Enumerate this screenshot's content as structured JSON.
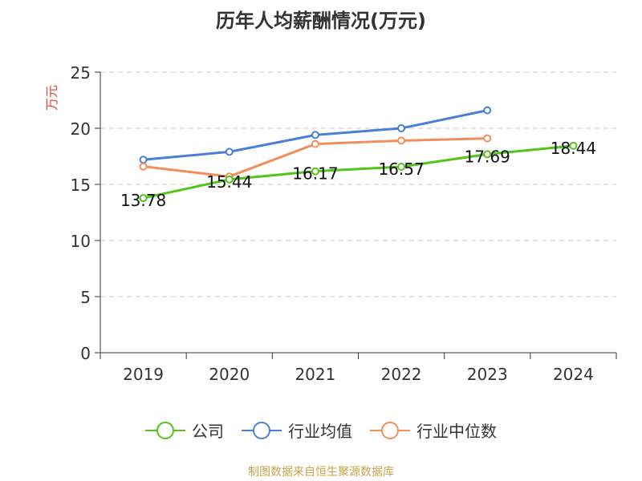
{
  "title": "历年人均薪酬情况(万元)",
  "source": "制图数据来自恒生聚源数据库",
  "chart_data": {
    "type": "line",
    "categories": [
      "2019",
      "2020",
      "2021",
      "2022",
      "2023",
      "2024"
    ],
    "ylabel": "万元",
    "ylim": [
      0,
      25
    ],
    "yticks": [
      0,
      5,
      10,
      15,
      20,
      25
    ],
    "grid": true,
    "legend_position": "bottom",
    "series": [
      {
        "name": "公司",
        "color": "#52c41a",
        "values": [
          13.78,
          15.44,
          16.17,
          16.57,
          17.69,
          18.44
        ],
        "labels": [
          "13.78",
          "15.44",
          "16.17",
          "16.57",
          "17.69",
          "18.44"
        ]
      },
      {
        "name": "行业均值",
        "color": "#4a7fd8",
        "values": [
          17.2,
          17.9,
          19.4,
          20.0,
          21.6,
          null
        ]
      },
      {
        "name": "行业中位数",
        "color": "#f28e5b",
        "values": [
          16.6,
          15.7,
          18.6,
          18.9,
          19.1,
          null
        ]
      }
    ]
  }
}
